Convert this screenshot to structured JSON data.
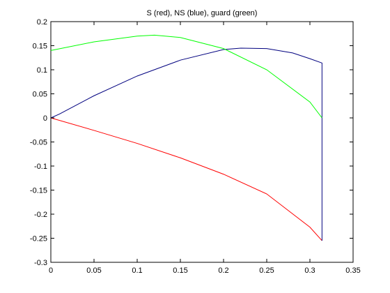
{
  "chart_data": {
    "type": "line",
    "title": "S (red), NS (blue), guard (green)",
    "xlabel": "",
    "ylabel": "",
    "xlim": [
      0,
      0.35
    ],
    "ylim": [
      -0.3,
      0.2
    ],
    "x_ticks": [
      0,
      0.05,
      0.1,
      0.15,
      0.2,
      0.25,
      0.3,
      0.35
    ],
    "x_tick_labels": [
      "0",
      "0.05",
      "0.1",
      "0.15",
      "0.2",
      "0.25",
      "0.3",
      "0.35"
    ],
    "y_ticks": [
      0.2,
      0.15,
      0.1,
      0.05,
      0,
      -0.05,
      -0.1,
      -0.15,
      -0.2,
      -0.25,
      -0.3
    ],
    "y_tick_labels": [
      "0.2",
      "0.15",
      "0.1",
      "0.05",
      "0",
      "-0.05",
      "-0.1",
      "-0.15",
      "-0.2",
      "-0.25",
      "-0.3"
    ],
    "grid": false,
    "legend": "none",
    "series": [
      {
        "color": "#ff0000",
        "x": [
          0,
          0.05,
          0.1,
          0.15,
          0.2,
          0.25,
          0.3,
          0.314
        ],
        "y": [
          0,
          -0.026,
          -0.053,
          -0.083,
          -0.117,
          -0.158,
          -0.227,
          -0.255
        ]
      },
      {
        "color": "#00007f",
        "x": [
          0,
          0.01,
          0.05,
          0.1,
          0.15,
          0.2,
          0.22,
          0.25,
          0.28,
          0.3,
          0.314,
          0.314,
          0.314
        ],
        "y": [
          0,
          0.008,
          0.046,
          0.087,
          0.12,
          0.142,
          0.145,
          0.144,
          0.135,
          0.123,
          0.114,
          -0.255,
          -0.255
        ]
      },
      {
        "color": "#00ff00",
        "x": [
          0,
          0.05,
          0.1,
          0.12,
          0.15,
          0.2,
          0.25,
          0.3,
          0.314
        ],
        "y": [
          0.14,
          0.158,
          0.17,
          0.172,
          0.167,
          0.144,
          0.1,
          0.033,
          0
        ]
      }
    ]
  }
}
